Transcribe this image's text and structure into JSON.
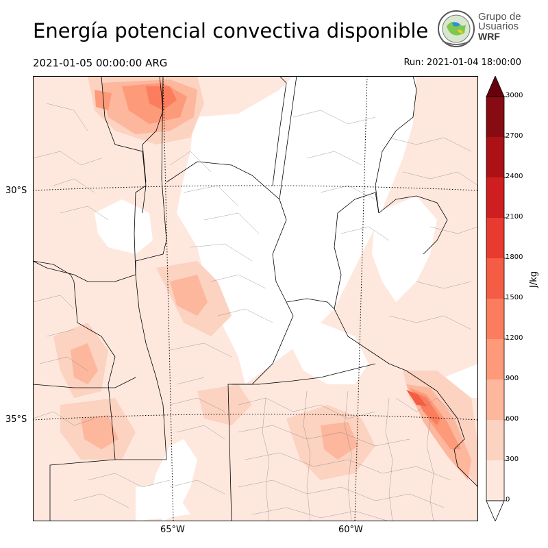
{
  "header": {
    "title": "Energía potencial convectiva disponible",
    "valid_time": "2021-01-05 00:00:00 ARG",
    "run_time": "Run: 2021-01-04 18:00:00"
  },
  "logo": {
    "line1": "Grupo de",
    "line2": "Usuarios",
    "line3": "WRF"
  },
  "map": {
    "lat_labels": [
      "30°S",
      "35°S"
    ],
    "lon_labels": [
      "65°W",
      "60°W"
    ],
    "colors": {
      "background": "#ffffff",
      "border": "#000000",
      "admin_lines": "#888888"
    }
  },
  "colorbar": {
    "unit": "J/kg",
    "levels": [
      0,
      300,
      600,
      900,
      1200,
      1500,
      1800,
      2100,
      2400,
      2700,
      3000
    ],
    "tick_labels": [
      "0",
      "300",
      "600",
      "900",
      "1200",
      "1500",
      "1800",
      "2100",
      "2400",
      "2700",
      "3000"
    ],
    "colors": [
      "#fee8de",
      "#fcd2c0",
      "#fcb79d",
      "#fc9a7a",
      "#fb7d5d",
      "#f55c44",
      "#e93a2f",
      "#cf1e20",
      "#ac1116",
      "#870b12"
    ],
    "extend_over": "#67000d",
    "extend_under": "#ffffff"
  }
}
